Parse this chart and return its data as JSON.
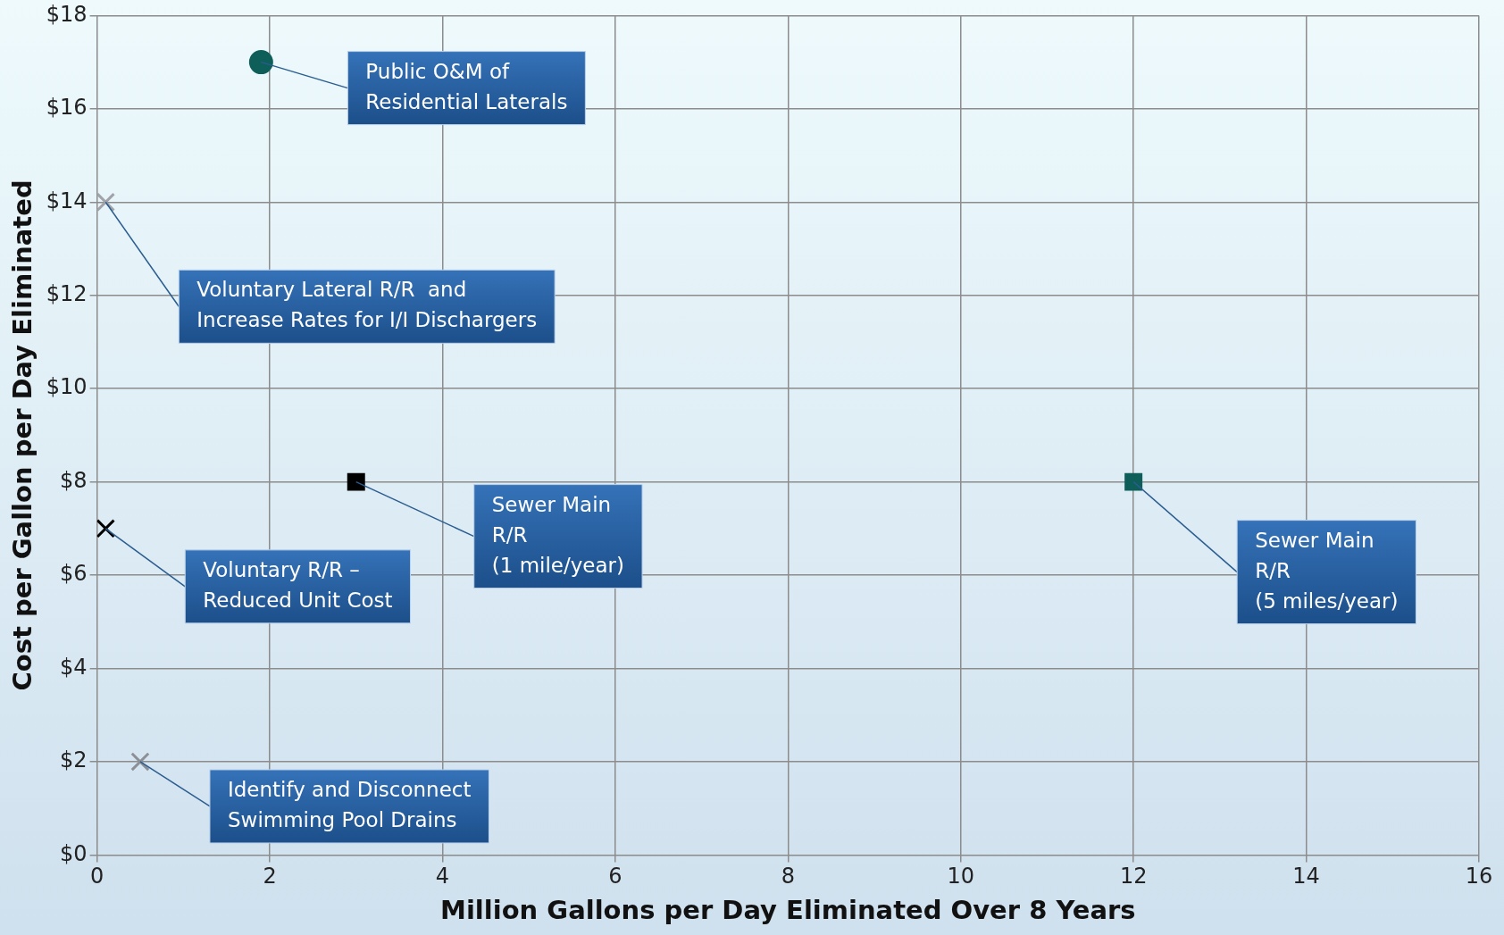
{
  "chart_data": {
    "type": "scatter",
    "xlabel": "Million Gallons per Day Eliminated Over 8 Years",
    "ylabel": "Cost per Gallon per Day Eliminated",
    "series": [
      {
        "color": "#0e5e5a",
        "marker": "circle",
        "x": [
          1.9
        ],
        "values": [
          17
        ]
      },
      {
        "color": "#a0a4aa",
        "marker": "cross",
        "x": [
          0.1
        ],
        "values": [
          14
        ]
      },
      {
        "color": "#000000",
        "marker": "square",
        "x": [
          3
        ],
        "values": [
          8
        ]
      },
      {
        "color": "#0e5e5a",
        "marker": "square",
        "x": [
          12
        ],
        "values": [
          8
        ]
      },
      {
        "color": "#000000",
        "marker": "cross",
        "x": [
          0.1
        ],
        "values": [
          7
        ]
      },
      {
        "color": "#8c9096",
        "marker": "cross",
        "x": [
          0.5
        ],
        "values": [
          2
        ]
      }
    ],
    "annotations": [
      {
        "text": "Public O&M of\nResidential Laterals",
        "x": 1.9,
        "y": 17
      },
      {
        "text": "Voluntary Lateral R/R  and\nIncrease Rates for I/I Dischargers",
        "x": 0.1,
        "y": 14
      },
      {
        "text": "Sewer Main\nR/R\n(1 mile/year)",
        "x": 3,
        "y": 8
      },
      {
        "text": "Sewer Main\nR/R\n(5 miles/year)",
        "x": 12,
        "y": 8
      },
      {
        "text": "Voluntary R/R –\nReduced Unit Cost",
        "x": 0.1,
        "y": 7
      },
      {
        "text": "Identify and Disconnect\nSwimming Pool Drains",
        "x": 0.5,
        "y": 2
      }
    ],
    "xlim": [
      0,
      16
    ],
    "xticks": [
      0,
      2,
      4,
      6,
      8,
      10,
      12,
      14,
      16
    ],
    "ylim": [
      0,
      18
    ],
    "yticks": [
      {
        "value": 0,
        "label": "$0"
      },
      {
        "value": 2,
        "label": "$2"
      },
      {
        "value": 4,
        "label": "$4"
      },
      {
        "value": 6,
        "label": "$6"
      },
      {
        "value": 8,
        "label": "$8"
      },
      {
        "value": 10,
        "label": "$10"
      },
      {
        "value": 12,
        "label": "$12"
      },
      {
        "value": 14,
        "label": "$14"
      },
      {
        "value": 16,
        "label": "$16"
      },
      {
        "value": 18,
        "label": "$18"
      }
    ],
    "grid": true,
    "legend": false
  }
}
